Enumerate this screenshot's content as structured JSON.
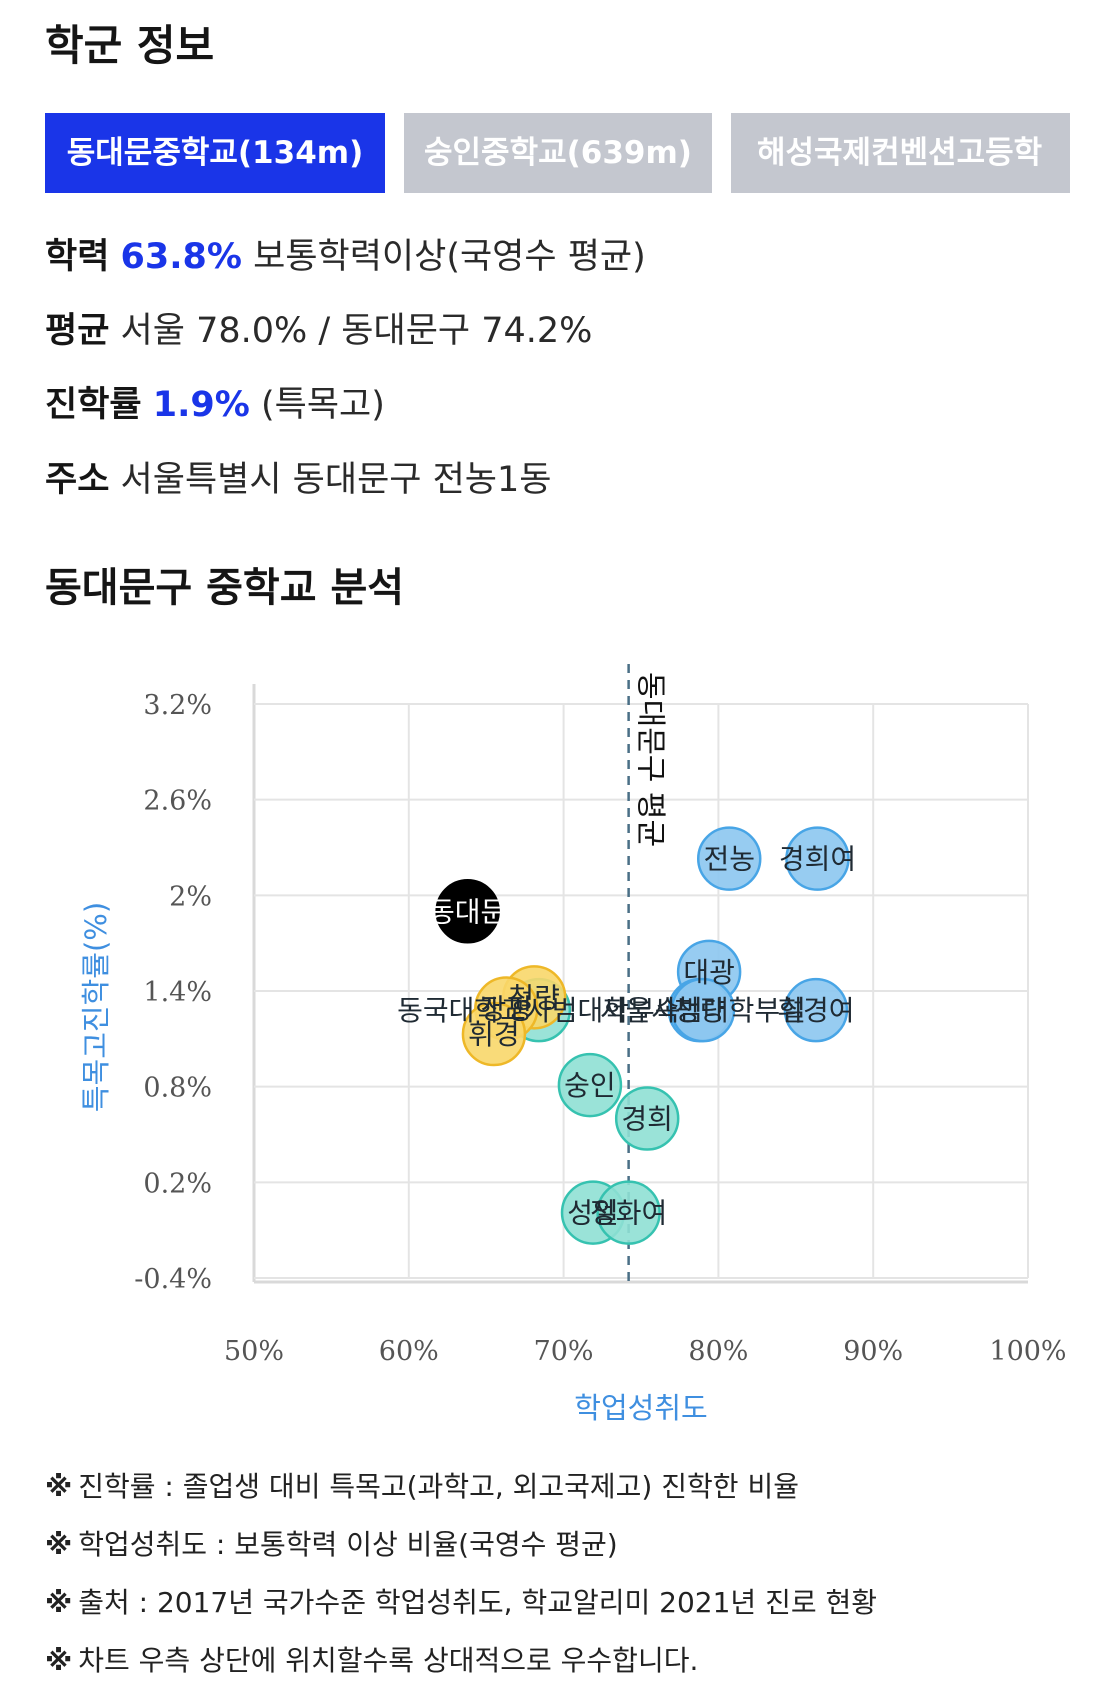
{
  "header": {
    "title": "학군 정보"
  },
  "tabs": [
    {
      "label": "동대문중학교(134m)",
      "active": true
    },
    {
      "label": "숭인중학교(639m)",
      "active": false
    },
    {
      "label": "해성국제컨벤션고등학",
      "active": false
    }
  ],
  "info": {
    "achievement": {
      "key": "학력",
      "value": "63.8%",
      "desc": "보통학력이상(국영수 평균)"
    },
    "average": {
      "key": "평균",
      "text": "서울 78.0% / 동대문구 74.2%"
    },
    "advancement": {
      "key": "진학률",
      "value": "1.9%",
      "desc": "(특목고)"
    },
    "address": {
      "key": "주소",
      "text": "서울특별시 동대문구 전농1동"
    }
  },
  "analysis": {
    "title": "동대문구 중학교 분석"
  },
  "colors": {
    "accent": "#1a35e8",
    "tab_inactive": "#c4c7cf",
    "axis_label": "#3f8fe0",
    "highlight_school": "#000000",
    "group_blue_fill": "#8cc7f0",
    "group_blue_edge": "#48a5e6",
    "group_teal_fill": "#8fe0d4",
    "group_teal_edge": "#36c2b0",
    "group_yellow_fill": "#f8d76a",
    "group_yellow_edge": "#eeb828"
  },
  "chart_data": {
    "type": "scatter",
    "xlabel": "학업성취도",
    "ylabel": "특목고진학률(%)",
    "xlim": [
      50,
      100
    ],
    "ylim": [
      -0.4,
      3.2
    ],
    "x_ticks": [
      "50%",
      "60%",
      "70%",
      "80%",
      "90%",
      "100%"
    ],
    "x_tick_values": [
      50,
      60,
      70,
      80,
      90,
      100
    ],
    "y_ticks": [
      "3.2%",
      "2.6%",
      "2%",
      "1.4%",
      "0.8%",
      "0.2%",
      "-0.4%"
    ],
    "y_tick_values": [
      3.2,
      2.6,
      2.0,
      1.4,
      0.8,
      0.2,
      -0.4
    ],
    "grid": true,
    "reference_line": {
      "x": 74.2,
      "label": "동대문구 평균"
    },
    "points": [
      {
        "label": "동대문",
        "x": 63.8,
        "y": 1.9,
        "group": "highlight"
      },
      {
        "label": "전농",
        "x": 80.7,
        "y": 2.23,
        "group": "blue"
      },
      {
        "label": "경희여",
        "x": 86.4,
        "y": 2.23,
        "group": "blue"
      },
      {
        "label": "대광",
        "x": 79.4,
        "y": 1.52,
        "group": "blue"
      },
      {
        "label": "휘경여",
        "x": 86.3,
        "y": 1.28,
        "group": "blue"
      },
      {
        "label": "청량",
        "x": 78.8,
        "y": 1.28,
        "group": "blue"
      },
      {
        "label": "서울사범대학부설",
        "x": 79.0,
        "y": 1.28,
        "group": "blue"
      },
      {
        "label": "청량",
        "x": 68.1,
        "y": 1.36,
        "group": "yellow"
      },
      {
        "label": "동국대학교사범대학부속",
        "x": 68.4,
        "y": 1.28,
        "group": "teal"
      },
      {
        "label": "장평",
        "x": 66.3,
        "y": 1.29,
        "group": "yellow"
      },
      {
        "label": "휘경",
        "x": 65.5,
        "y": 1.13,
        "group": "yellow"
      },
      {
        "label": "숭인",
        "x": 71.7,
        "y": 0.81,
        "group": "teal"
      },
      {
        "label": "경희",
        "x": 75.4,
        "y": 0.6,
        "group": "teal"
      },
      {
        "label": "성일",
        "x": 71.9,
        "y": 0.01,
        "group": "teal"
      },
      {
        "label": "정화여",
        "x": 74.2,
        "y": 0.01,
        "group": "teal"
      }
    ]
  },
  "notes": [
    "진학률 : 졸업생 대비 특목고(과학고, 외고국제고) 진학한 비율",
    "학업성취도 : 보통학력 이상 비율(국영수 평균)",
    "출처 : 2017년 국가수준 학업성취도, 학교알리미 2021년 진로 현황",
    "차트 우측 상단에 위치할수록 상대적으로 우수합니다."
  ],
  "notes_mark": "※"
}
